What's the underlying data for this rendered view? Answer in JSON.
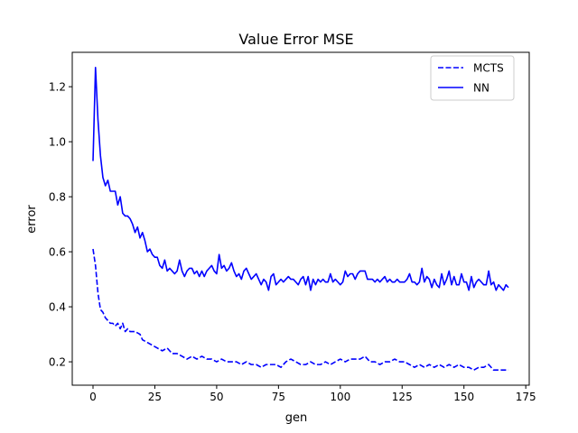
{
  "chart_data": {
    "type": "line",
    "title": "Value Error MSE",
    "xlabel": "gen",
    "ylabel": "error",
    "xlim": [
      -8.4,
      176.4
    ],
    "ylim": [
      0.115,
      1.325
    ],
    "xticks": [
      0,
      25,
      50,
      75,
      100,
      125,
      150,
      175
    ],
    "yticks": [
      0.2,
      0.4,
      0.6,
      0.8,
      1.0,
      1.2
    ],
    "xtick_labels": [
      "0",
      "25",
      "50",
      "75",
      "100",
      "125",
      "150",
      "175"
    ],
    "ytick_labels": [
      "0.2",
      "0.4",
      "0.6",
      "0.8",
      "1.0",
      "1.2"
    ],
    "grid": false,
    "legend_position": "top-right",
    "colors": {
      "series": "#0000ff",
      "axis": "#000000",
      "background": "#ffffff"
    },
    "series": [
      {
        "name": "MCTS",
        "style": "dashed",
        "points": [
          [
            0,
            0.61
          ],
          [
            1,
            0.55
          ],
          [
            2,
            0.45
          ],
          [
            3,
            0.39
          ],
          [
            4,
            0.38
          ],
          [
            5,
            0.36
          ],
          [
            6,
            0.35
          ],
          [
            7,
            0.34
          ],
          [
            8,
            0.34
          ],
          [
            9,
            0.33
          ],
          [
            10,
            0.34
          ],
          [
            11,
            0.32
          ],
          [
            12,
            0.34
          ],
          [
            13,
            0.31
          ],
          [
            14,
            0.32
          ],
          [
            15,
            0.31
          ],
          [
            17,
            0.31
          ],
          [
            19,
            0.3
          ],
          [
            20,
            0.28
          ],
          [
            22,
            0.27
          ],
          [
            24,
            0.26
          ],
          [
            26,
            0.25
          ],
          [
            28,
            0.24
          ],
          [
            30,
            0.25
          ],
          [
            32,
            0.23
          ],
          [
            34,
            0.23
          ],
          [
            36,
            0.22
          ],
          [
            38,
            0.21
          ],
          [
            40,
            0.22
          ],
          [
            42,
            0.21
          ],
          [
            44,
            0.22
          ],
          [
            46,
            0.21
          ],
          [
            48,
            0.21
          ],
          [
            50,
            0.2
          ],
          [
            52,
            0.21
          ],
          [
            54,
            0.2
          ],
          [
            56,
            0.2
          ],
          [
            58,
            0.2
          ],
          [
            60,
            0.19
          ],
          [
            62,
            0.2
          ],
          [
            64,
            0.19
          ],
          [
            66,
            0.19
          ],
          [
            68,
            0.18
          ],
          [
            70,
            0.19
          ],
          [
            72,
            0.19
          ],
          [
            74,
            0.19
          ],
          [
            76,
            0.18
          ],
          [
            78,
            0.2
          ],
          [
            80,
            0.21
          ],
          [
            82,
            0.2
          ],
          [
            84,
            0.19
          ],
          [
            86,
            0.19
          ],
          [
            88,
            0.2
          ],
          [
            90,
            0.19
          ],
          [
            92,
            0.19
          ],
          [
            94,
            0.2
          ],
          [
            96,
            0.19
          ],
          [
            98,
            0.2
          ],
          [
            100,
            0.21
          ],
          [
            102,
            0.2
          ],
          [
            104,
            0.21
          ],
          [
            106,
            0.21
          ],
          [
            108,
            0.21
          ],
          [
            110,
            0.22
          ],
          [
            112,
            0.2
          ],
          [
            114,
            0.2
          ],
          [
            116,
            0.19
          ],
          [
            118,
            0.2
          ],
          [
            120,
            0.2
          ],
          [
            122,
            0.21
          ],
          [
            124,
            0.2
          ],
          [
            126,
            0.2
          ],
          [
            128,
            0.19
          ],
          [
            130,
            0.18
          ],
          [
            132,
            0.19
          ],
          [
            134,
            0.18
          ],
          [
            136,
            0.19
          ],
          [
            138,
            0.18
          ],
          [
            140,
            0.19
          ],
          [
            142,
            0.18
          ],
          [
            144,
            0.19
          ],
          [
            146,
            0.18
          ],
          [
            148,
            0.19
          ],
          [
            150,
            0.18
          ],
          [
            152,
            0.18
          ],
          [
            154,
            0.17
          ],
          [
            156,
            0.18
          ],
          [
            158,
            0.18
          ],
          [
            160,
            0.19
          ],
          [
            162,
            0.17
          ],
          [
            164,
            0.17
          ],
          [
            166,
            0.17
          ],
          [
            167,
            0.17
          ],
          [
            168,
            0.17
          ]
        ]
      },
      {
        "name": "NN",
        "style": "solid",
        "points": [
          [
            0,
            0.93
          ],
          [
            1,
            1.27
          ],
          [
            2,
            1.08
          ],
          [
            3,
            0.95
          ],
          [
            4,
            0.87
          ],
          [
            5,
            0.84
          ],
          [
            6,
            0.86
          ],
          [
            7,
            0.82
          ],
          [
            8,
            0.82
          ],
          [
            9,
            0.82
          ],
          [
            10,
            0.77
          ],
          [
            11,
            0.8
          ],
          [
            12,
            0.74
          ],
          [
            13,
            0.73
          ],
          [
            14,
            0.73
          ],
          [
            15,
            0.72
          ],
          [
            16,
            0.7
          ],
          [
            17,
            0.67
          ],
          [
            18,
            0.69
          ],
          [
            19,
            0.65
          ],
          [
            20,
            0.67
          ],
          [
            21,
            0.64
          ],
          [
            22,
            0.6
          ],
          [
            23,
            0.61
          ],
          [
            24,
            0.59
          ],
          [
            25,
            0.58
          ],
          [
            26,
            0.58
          ],
          [
            27,
            0.55
          ],
          [
            28,
            0.54
          ],
          [
            29,
            0.57
          ],
          [
            30,
            0.53
          ],
          [
            31,
            0.54
          ],
          [
            32,
            0.53
          ],
          [
            33,
            0.52
          ],
          [
            34,
            0.53
          ],
          [
            35,
            0.57
          ],
          [
            36,
            0.53
          ],
          [
            37,
            0.51
          ],
          [
            38,
            0.53
          ],
          [
            39,
            0.54
          ],
          [
            40,
            0.54
          ],
          [
            41,
            0.52
          ],
          [
            42,
            0.53
          ],
          [
            43,
            0.51
          ],
          [
            44,
            0.53
          ],
          [
            45,
            0.51
          ],
          [
            46,
            0.53
          ],
          [
            47,
            0.54
          ],
          [
            48,
            0.55
          ],
          [
            49,
            0.53
          ],
          [
            50,
            0.52
          ],
          [
            51,
            0.59
          ],
          [
            52,
            0.54
          ],
          [
            53,
            0.55
          ],
          [
            54,
            0.53
          ],
          [
            55,
            0.54
          ],
          [
            56,
            0.56
          ],
          [
            57,
            0.53
          ],
          [
            58,
            0.51
          ],
          [
            59,
            0.52
          ],
          [
            60,
            0.5
          ],
          [
            61,
            0.53
          ],
          [
            62,
            0.54
          ],
          [
            63,
            0.52
          ],
          [
            64,
            0.5
          ],
          [
            65,
            0.51
          ],
          [
            66,
            0.52
          ],
          [
            67,
            0.5
          ],
          [
            68,
            0.48
          ],
          [
            69,
            0.5
          ],
          [
            70,
            0.49
          ],
          [
            71,
            0.46
          ],
          [
            72,
            0.51
          ],
          [
            73,
            0.52
          ],
          [
            74,
            0.48
          ],
          [
            75,
            0.49
          ],
          [
            76,
            0.5
          ],
          [
            77,
            0.49
          ],
          [
            78,
            0.5
          ],
          [
            79,
            0.51
          ],
          [
            80,
            0.5
          ],
          [
            81,
            0.5
          ],
          [
            82,
            0.49
          ],
          [
            83,
            0.48
          ],
          [
            84,
            0.5
          ],
          [
            85,
            0.51
          ],
          [
            86,
            0.48
          ],
          [
            87,
            0.51
          ],
          [
            88,
            0.46
          ],
          [
            89,
            0.5
          ],
          [
            90,
            0.48
          ],
          [
            91,
            0.5
          ],
          [
            92,
            0.49
          ],
          [
            93,
            0.5
          ],
          [
            94,
            0.49
          ],
          [
            95,
            0.49
          ],
          [
            96,
            0.52
          ],
          [
            97,
            0.49
          ],
          [
            98,
            0.5
          ],
          [
            99,
            0.49
          ],
          [
            100,
            0.48
          ],
          [
            101,
            0.49
          ],
          [
            102,
            0.53
          ],
          [
            103,
            0.51
          ],
          [
            104,
            0.52
          ],
          [
            105,
            0.52
          ],
          [
            106,
            0.5
          ],
          [
            107,
            0.52
          ],
          [
            108,
            0.53
          ],
          [
            109,
            0.53
          ],
          [
            110,
            0.53
          ],
          [
            111,
            0.5
          ],
          [
            112,
            0.5
          ],
          [
            113,
            0.5
          ],
          [
            114,
            0.49
          ],
          [
            115,
            0.5
          ],
          [
            116,
            0.49
          ],
          [
            117,
            0.5
          ],
          [
            118,
            0.51
          ],
          [
            119,
            0.49
          ],
          [
            120,
            0.5
          ],
          [
            121,
            0.49
          ],
          [
            122,
            0.49
          ],
          [
            123,
            0.5
          ],
          [
            124,
            0.49
          ],
          [
            125,
            0.49
          ],
          [
            126,
            0.49
          ],
          [
            127,
            0.5
          ],
          [
            128,
            0.52
          ],
          [
            129,
            0.49
          ],
          [
            130,
            0.49
          ],
          [
            131,
            0.48
          ],
          [
            132,
            0.49
          ],
          [
            133,
            0.54
          ],
          [
            134,
            0.49
          ],
          [
            135,
            0.51
          ],
          [
            136,
            0.5
          ],
          [
            137,
            0.47
          ],
          [
            138,
            0.5
          ],
          [
            139,
            0.48
          ],
          [
            140,
            0.47
          ],
          [
            141,
            0.52
          ],
          [
            142,
            0.48
          ],
          [
            143,
            0.5
          ],
          [
            144,
            0.53
          ],
          [
            145,
            0.48
          ],
          [
            146,
            0.51
          ],
          [
            147,
            0.48
          ],
          [
            148,
            0.48
          ],
          [
            149,
            0.52
          ],
          [
            150,
            0.49
          ],
          [
            151,
            0.49
          ],
          [
            152,
            0.46
          ],
          [
            153,
            0.51
          ],
          [
            154,
            0.47
          ],
          [
            155,
            0.49
          ],
          [
            156,
            0.5
          ],
          [
            157,
            0.49
          ],
          [
            158,
            0.48
          ],
          [
            159,
            0.48
          ],
          [
            160,
            0.53
          ],
          [
            161,
            0.48
          ],
          [
            162,
            0.49
          ],
          [
            163,
            0.46
          ],
          [
            164,
            0.48
          ],
          [
            165,
            0.47
          ],
          [
            166,
            0.46
          ],
          [
            167,
            0.48
          ],
          [
            168,
            0.47
          ]
        ]
      }
    ]
  }
}
